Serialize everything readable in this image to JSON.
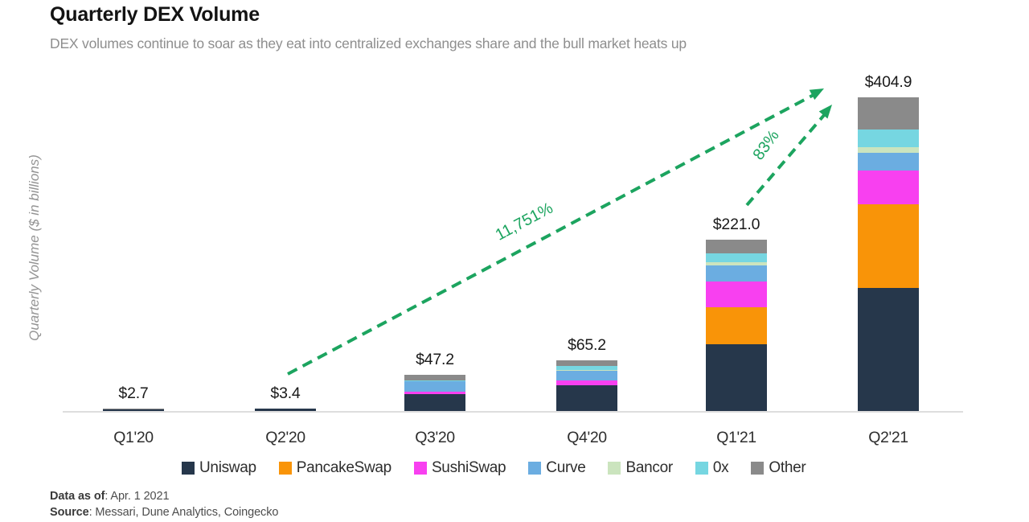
{
  "header": {
    "title": "Quarterly DEX Volume",
    "subtitle": "DEX volumes continue to soar as they eat into centralized exchanges share and the bull market heats up"
  },
  "chart_data": {
    "type": "bar",
    "stacked": true,
    "title": "Quarterly DEX Volume",
    "ylabel": "Quarterly Volume ($ in billions)",
    "xlabel": "",
    "unit": "$ billions",
    "legend_position": "bottom",
    "grid": false,
    "categories": [
      "Q1'20",
      "Q2'20",
      "Q3'20",
      "Q4'20",
      "Q1'21",
      "Q2'21"
    ],
    "totals_labels": [
      "$2.7",
      "$3.4",
      "$47.2",
      "$65.2",
      "$221.0",
      "$404.9"
    ],
    "totals": [
      2.7,
      3.4,
      47.2,
      65.2,
      221.0,
      404.9
    ],
    "series": [
      {
        "name": "Uniswap",
        "color": "#26374B",
        "values": [
          2.6,
          3.3,
          22.0,
          33.3,
          86.5,
          159.0
        ]
      },
      {
        "name": "PancakeSwap",
        "color": "#F99408",
        "values": [
          0,
          0,
          0,
          0,
          47.0,
          108.0
        ]
      },
      {
        "name": "SushiSwap",
        "color": "#F840F0",
        "values": [
          0,
          0,
          3.2,
          6.5,
          34.0,
          44.0
        ]
      },
      {
        "name": "Curve",
        "color": "#6BADE1",
        "values": [
          0,
          0,
          13.0,
          12.0,
          20.0,
          22.0
        ]
      },
      {
        "name": "Bancor",
        "color": "#CBE4BE",
        "values": [
          0,
          0,
          0,
          1.0,
          5.0,
          8.0
        ]
      },
      {
        "name": "0x",
        "color": "#76D6E1",
        "values": [
          0,
          0,
          1.0,
          5.5,
          11.5,
          23.0
        ]
      },
      {
        "name": "Other",
        "color": "#8A8A8A",
        "values": [
          0.1,
          0.1,
          8.0,
          6.9,
          17.0,
          40.9
        ]
      }
    ],
    "annotations": [
      {
        "label": "11,751%",
        "from": "Q2'20",
        "to": "Q2'21"
      },
      {
        "label": "83%",
        "from": "Q1'21",
        "to": "Q2'21"
      }
    ],
    "colors": {
      "arrow_green": "#1CA45F",
      "axis_line": "#DEDEDE",
      "total_label": "#1A1A1A"
    }
  },
  "footer": {
    "data_as_of_label": "Data as of",
    "data_as_of_value": ": Apr. 1 2021",
    "source_label": "Source",
    "source_value": ": Messari, Dune Analytics, Coingecko"
  }
}
